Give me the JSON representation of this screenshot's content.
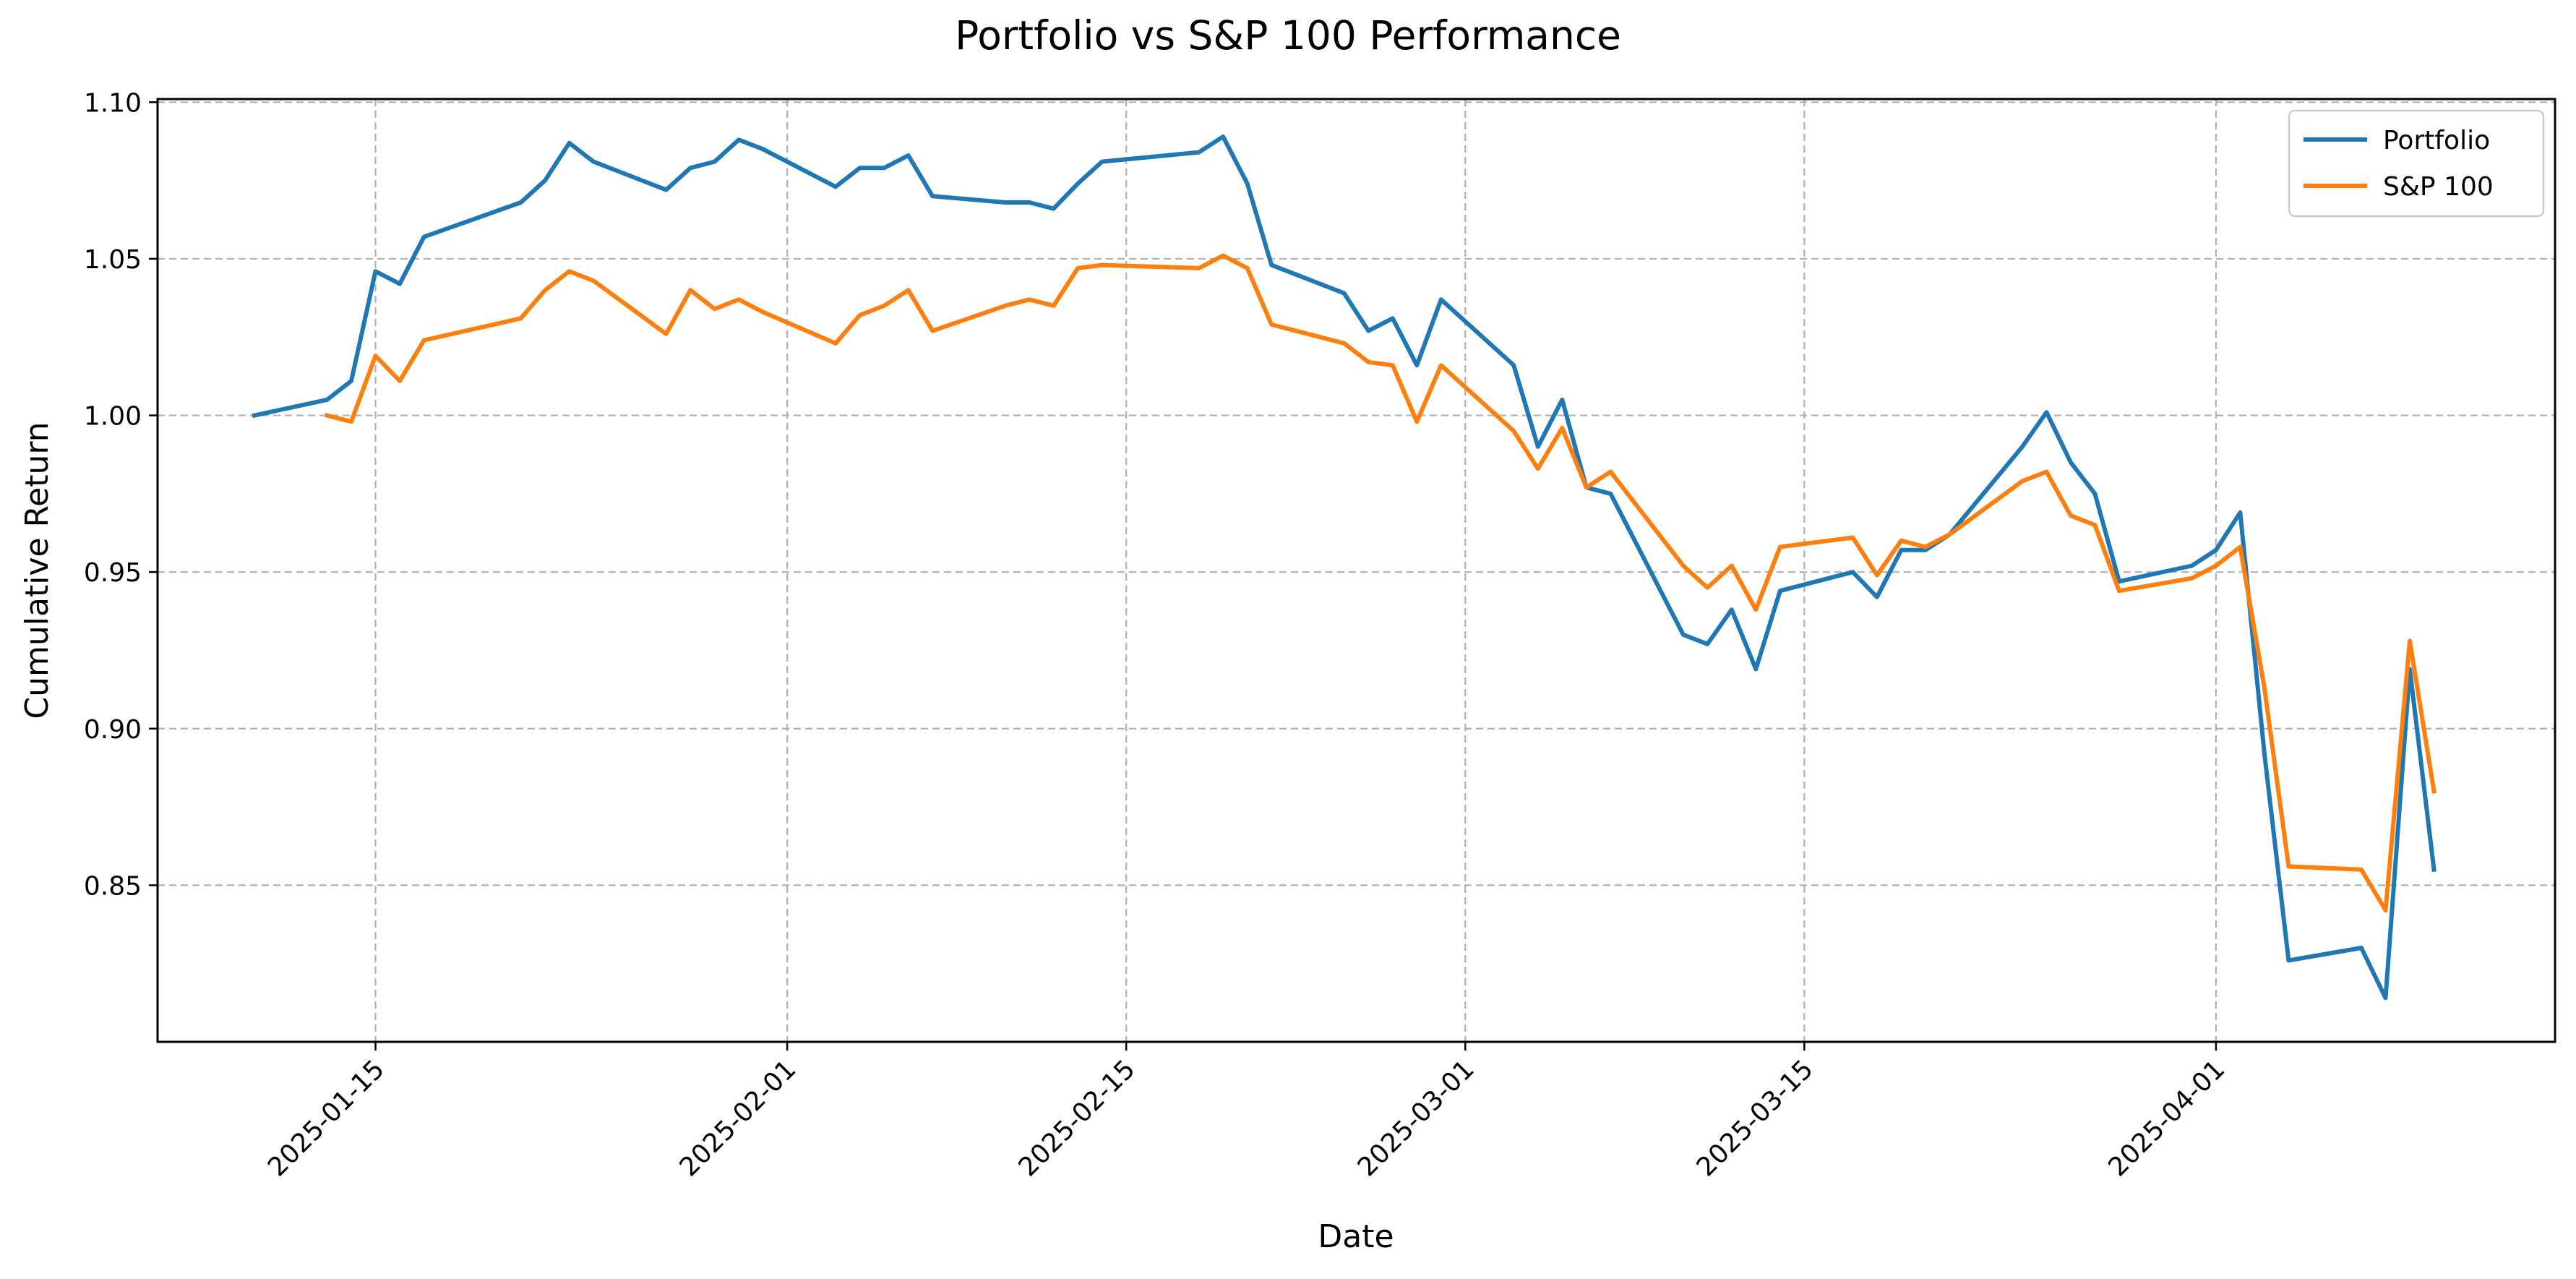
{
  "chart_data": {
    "type": "line",
    "title": "Portfolio vs S&P 100 Performance",
    "xlabel": "Date",
    "ylabel": "Cumulative Return",
    "x_axis": {
      "type": "date",
      "range": [
        "2025-01-06",
        "2025-04-15"
      ],
      "ticks": [
        "2025-01-15",
        "2025-02-01",
        "2025-02-15",
        "2025-03-01",
        "2025-03-15",
        "2025-04-01"
      ]
    },
    "y_axis": {
      "range": [
        0.8,
        1.101
      ],
      "ticks": [
        "0.85",
        "0.90",
        "0.95",
        "1.00",
        "1.05",
        "1.10"
      ]
    },
    "grid": true,
    "legend": "top-right",
    "series": [
      {
        "name": "Portfolio",
        "color": "#1f77b4",
        "points": [
          [
            "2025-01-10",
            1.0
          ],
          [
            "2025-01-13",
            1.005
          ],
          [
            "2025-01-14",
            1.011
          ],
          [
            "2025-01-15",
            1.046
          ],
          [
            "2025-01-16",
            1.042
          ],
          [
            "2025-01-17",
            1.057
          ],
          [
            "2025-01-21",
            1.068
          ],
          [
            "2025-01-22",
            1.075
          ],
          [
            "2025-01-23",
            1.087
          ],
          [
            "2025-01-24",
            1.081
          ],
          [
            "2025-01-27",
            1.072
          ],
          [
            "2025-01-28",
            1.079
          ],
          [
            "2025-01-29",
            1.081
          ],
          [
            "2025-01-30",
            1.088
          ],
          [
            "2025-01-31",
            1.085
          ],
          [
            "2025-02-03",
            1.073
          ],
          [
            "2025-02-04",
            1.079
          ],
          [
            "2025-02-05",
            1.079
          ],
          [
            "2025-02-06",
            1.083
          ],
          [
            "2025-02-07",
            1.07
          ],
          [
            "2025-02-10",
            1.068
          ],
          [
            "2025-02-11",
            1.068
          ],
          [
            "2025-02-12",
            1.066
          ],
          [
            "2025-02-13",
            1.074
          ],
          [
            "2025-02-14",
            1.081
          ],
          [
            "2025-02-18",
            1.084
          ],
          [
            "2025-02-19",
            1.089
          ],
          [
            "2025-02-20",
            1.074
          ],
          [
            "2025-02-21",
            1.048
          ],
          [
            "2025-02-24",
            1.039
          ],
          [
            "2025-02-25",
            1.027
          ],
          [
            "2025-02-26",
            1.031
          ],
          [
            "2025-02-27",
            1.016
          ],
          [
            "2025-02-28",
            1.037
          ],
          [
            "2025-03-03",
            1.016
          ],
          [
            "2025-03-04",
            0.99
          ],
          [
            "2025-03-05",
            1.005
          ],
          [
            "2025-03-06",
            0.977
          ],
          [
            "2025-03-07",
            0.975
          ],
          [
            "2025-03-10",
            0.93
          ],
          [
            "2025-03-11",
            0.927
          ],
          [
            "2025-03-12",
            0.938
          ],
          [
            "2025-03-13",
            0.919
          ],
          [
            "2025-03-14",
            0.944
          ],
          [
            "2025-03-17",
            0.95
          ],
          [
            "2025-03-18",
            0.942
          ],
          [
            "2025-03-19",
            0.957
          ],
          [
            "2025-03-20",
            0.957
          ],
          [
            "2025-03-21",
            0.962
          ],
          [
            "2025-03-24",
            0.99
          ],
          [
            "2025-03-25",
            1.001
          ],
          [
            "2025-03-26",
            0.985
          ],
          [
            "2025-03-27",
            0.975
          ],
          [
            "2025-03-28",
            0.947
          ],
          [
            "2025-03-31",
            0.952
          ],
          [
            "2025-04-01",
            0.957
          ],
          [
            "2025-04-02",
            0.969
          ],
          [
            "2025-04-03",
            0.892
          ],
          [
            "2025-04-04",
            0.826
          ],
          [
            "2025-04-07",
            0.83
          ],
          [
            "2025-04-08",
            0.814
          ],
          [
            "2025-04-09",
            0.919
          ],
          [
            "2025-04-10",
            0.855
          ]
        ]
      },
      {
        "name": "S&P 100",
        "color": "#ff7f0e",
        "points": [
          [
            "2025-01-13",
            1.0
          ],
          [
            "2025-01-14",
            0.998
          ],
          [
            "2025-01-15",
            1.019
          ],
          [
            "2025-01-16",
            1.011
          ],
          [
            "2025-01-17",
            1.024
          ],
          [
            "2025-01-21",
            1.031
          ],
          [
            "2025-01-22",
            1.04
          ],
          [
            "2025-01-23",
            1.046
          ],
          [
            "2025-01-24",
            1.043
          ],
          [
            "2025-01-27",
            1.026
          ],
          [
            "2025-01-28",
            1.04
          ],
          [
            "2025-01-29",
            1.034
          ],
          [
            "2025-01-30",
            1.037
          ],
          [
            "2025-01-31",
            1.033
          ],
          [
            "2025-02-03",
            1.023
          ],
          [
            "2025-02-04",
            1.032
          ],
          [
            "2025-02-05",
            1.035
          ],
          [
            "2025-02-06",
            1.04
          ],
          [
            "2025-02-07",
            1.027
          ],
          [
            "2025-02-10",
            1.035
          ],
          [
            "2025-02-11",
            1.037
          ],
          [
            "2025-02-12",
            1.035
          ],
          [
            "2025-02-13",
            1.047
          ],
          [
            "2025-02-14",
            1.048
          ],
          [
            "2025-02-18",
            1.047
          ],
          [
            "2025-02-19",
            1.051
          ],
          [
            "2025-02-20",
            1.047
          ],
          [
            "2025-02-21",
            1.029
          ],
          [
            "2025-02-24",
            1.023
          ],
          [
            "2025-02-25",
            1.017
          ],
          [
            "2025-02-26",
            1.016
          ],
          [
            "2025-02-27",
            0.998
          ],
          [
            "2025-02-28",
            1.016
          ],
          [
            "2025-03-03",
            0.995
          ],
          [
            "2025-03-04",
            0.983
          ],
          [
            "2025-03-05",
            0.996
          ],
          [
            "2025-03-06",
            0.977
          ],
          [
            "2025-03-07",
            0.982
          ],
          [
            "2025-03-10",
            0.952
          ],
          [
            "2025-03-11",
            0.945
          ],
          [
            "2025-03-12",
            0.952
          ],
          [
            "2025-03-13",
            0.938
          ],
          [
            "2025-03-14",
            0.958
          ],
          [
            "2025-03-17",
            0.961
          ],
          [
            "2025-03-18",
            0.949
          ],
          [
            "2025-03-19",
            0.96
          ],
          [
            "2025-03-20",
            0.958
          ],
          [
            "2025-03-21",
            0.962
          ],
          [
            "2025-03-24",
            0.979
          ],
          [
            "2025-03-25",
            0.982
          ],
          [
            "2025-03-26",
            0.968
          ],
          [
            "2025-03-27",
            0.965
          ],
          [
            "2025-03-28",
            0.944
          ],
          [
            "2025-03-31",
            0.948
          ],
          [
            "2025-04-01",
            0.952
          ],
          [
            "2025-04-02",
            0.958
          ],
          [
            "2025-04-03",
            0.913
          ],
          [
            "2025-04-04",
            0.856
          ],
          [
            "2025-04-07",
            0.855
          ],
          [
            "2025-04-08",
            0.842
          ],
          [
            "2025-04-09",
            0.928
          ],
          [
            "2025-04-10",
            0.88
          ]
        ]
      }
    ]
  }
}
